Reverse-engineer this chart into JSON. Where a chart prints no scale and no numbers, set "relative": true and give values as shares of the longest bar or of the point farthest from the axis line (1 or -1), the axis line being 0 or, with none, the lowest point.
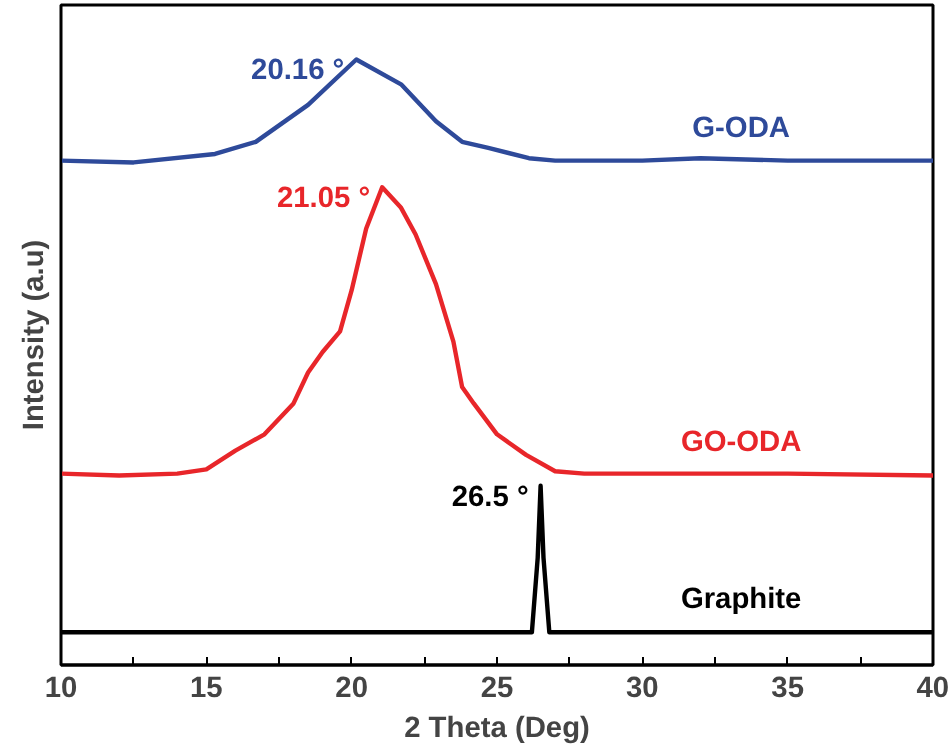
{
  "chart_data": {
    "type": "line",
    "relative": true,
    "xlabel": "2 Theta (Deg)",
    "ylabel": "Intensity (a.u)",
    "xlim": [
      10,
      40
    ],
    "xticks": [
      10,
      {
        "value": 12.5,
        "label": null
      },
      15,
      {
        "value": 17.5,
        "label": null
      },
      20,
      {
        "value": 22.5,
        "label": null
      },
      25,
      {
        "value": 27.5,
        "label": null
      },
      30,
      {
        "value": 32.5,
        "label": null
      },
      35,
      {
        "value": 37.5,
        "label": null
      },
      40
    ],
    "tick_labels": "x",
    "grid": false,
    "marker": "none",
    "line_style": "solid",
    "series": [
      {
        "name": "G-ODA",
        "color": "#2e4a9a",
        "x": [
          10,
          12.5,
          15.3,
          16.7,
          18.5,
          20.16,
          21.7,
          22.9,
          23.8,
          24.7,
          26.1,
          27,
          30,
          32,
          35,
          40
        ],
        "values": [
          0.833,
          0.83,
          0.844,
          0.864,
          0.925,
          1.0,
          0.959,
          0.898,
          0.864,
          0.854,
          0.837,
          0.833,
          0.833,
          0.837,
          0.833,
          0.833
        ]
      },
      {
        "name": "GO-ODA",
        "color": "#e8262a",
        "x": [
          10,
          12,
          14,
          15,
          16,
          17,
          18,
          18.5,
          19,
          19.6,
          20,
          20.5,
          21.05,
          21.7,
          22.2,
          22.9,
          23.5,
          23.8,
          24.2,
          25,
          26,
          27,
          28,
          30,
          35,
          40
        ],
        "values": [
          0.316,
          0.313,
          0.316,
          0.323,
          0.354,
          0.381,
          0.432,
          0.483,
          0.517,
          0.551,
          0.619,
          0.721,
          0.789,
          0.755,
          0.711,
          0.629,
          0.534,
          0.459,
          0.432,
          0.381,
          0.347,
          0.32,
          0.316,
          0.316,
          0.316,
          0.313
        ]
      },
      {
        "name": "Graphite",
        "color": "#000000",
        "x": [
          10,
          20,
          26.2,
          26.4,
          26.5,
          26.6,
          26.8,
          30,
          40
        ],
        "values": [
          0.054,
          0.054,
          0.054,
          0.177,
          0.296,
          0.177,
          0.054,
          0.054,
          0.054
        ]
      }
    ],
    "annotations": [
      {
        "text": "20.16 °",
        "x": 20.16,
        "y": 1.0
      },
      {
        "text": "21.05 °",
        "x": 21.05,
        "y": 0.789
      },
      {
        "text": "26.5 °",
        "x": 26.5,
        "y": 0.296
      }
    ]
  }
}
